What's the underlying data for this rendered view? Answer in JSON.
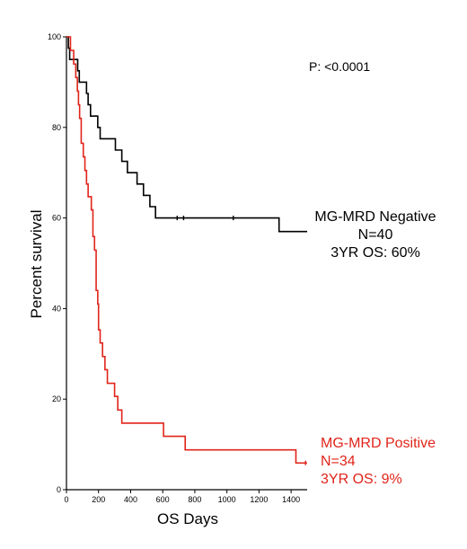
{
  "chart_data": {
    "type": "line",
    "step": true,
    "xlabel": "OS Days",
    "ylabel": "Percent survival",
    "xlim": [
      0,
      1500
    ],
    "ylim": [
      0,
      100
    ],
    "xticks": [
      0,
      200,
      400,
      600,
      800,
      1000,
      1200,
      1400
    ],
    "yticks": [
      0,
      20,
      40,
      60,
      80,
      100
    ],
    "grid": false,
    "pvalue": "P: <0.0001",
    "series": [
      {
        "key": "negative",
        "color": "#000000",
        "label_lines": [
          "MG-MRD Negative",
          "N=40",
          "3YR OS: 60%"
        ],
        "points": [
          [
            0,
            100
          ],
          [
            12,
            97.5
          ],
          [
            20,
            95
          ],
          [
            70,
            92.5
          ],
          [
            80,
            90
          ],
          [
            125,
            87.5
          ],
          [
            135,
            85
          ],
          [
            150,
            82.5
          ],
          [
            195,
            80
          ],
          [
            210,
            77.5
          ],
          [
            290,
            77.5
          ],
          [
            305,
            75
          ],
          [
            345,
            72.5
          ],
          [
            380,
            70
          ],
          [
            440,
            67.5
          ],
          [
            480,
            65
          ],
          [
            520,
            62.5
          ],
          [
            555,
            60
          ],
          [
            600,
            60
          ],
          [
            1320,
            60
          ],
          [
            1325,
            57
          ],
          [
            1500,
            57
          ]
        ],
        "censored": [
          [
            690,
            60
          ],
          [
            730,
            60
          ],
          [
            1040,
            60
          ]
        ]
      },
      {
        "key": "positive",
        "color": "#e0241a",
        "label_lines": [
          "MG-MRD Positive",
          "N=34",
          "3YR OS: 9%"
        ],
        "points": [
          [
            0,
            100
          ],
          [
            25,
            97
          ],
          [
            45,
            94
          ],
          [
            58,
            91
          ],
          [
            68,
            88
          ],
          [
            75,
            85
          ],
          [
            82,
            82
          ],
          [
            92,
            76.5
          ],
          [
            105,
            73.5
          ],
          [
            115,
            70.5
          ],
          [
            125,
            67.5
          ],
          [
            135,
            64.7
          ],
          [
            155,
            61.8
          ],
          [
            165,
            55.9
          ],
          [
            175,
            52.9
          ],
          [
            185,
            44
          ],
          [
            195,
            41
          ],
          [
            200,
            35.3
          ],
          [
            210,
            32.4
          ],
          [
            225,
            29.4
          ],
          [
            240,
            26.5
          ],
          [
            255,
            23.5
          ],
          [
            290,
            23.5
          ],
          [
            300,
            20.6
          ],
          [
            320,
            17.6
          ],
          [
            345,
            14.7
          ],
          [
            600,
            14.7
          ],
          [
            605,
            11.8
          ],
          [
            735,
            11.8
          ],
          [
            740,
            8.8
          ],
          [
            1420,
            8.8
          ],
          [
            1430,
            5.9
          ],
          [
            1500,
            5.9
          ]
        ],
        "censored": [
          [
            1490,
            5.9
          ]
        ]
      }
    ]
  }
}
